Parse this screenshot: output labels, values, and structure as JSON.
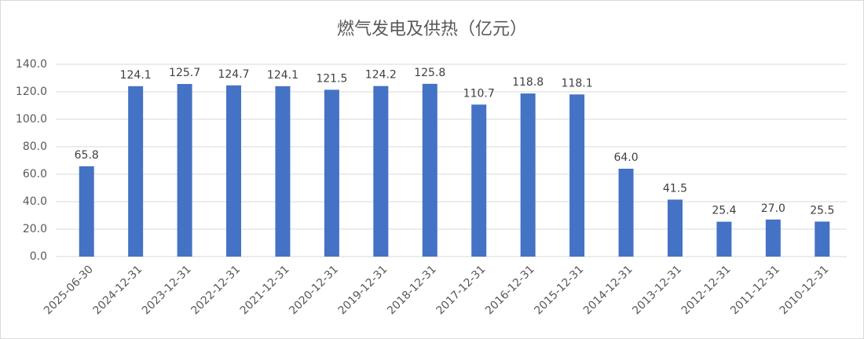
{
  "chart_data": {
    "type": "bar",
    "title": "燃气发电及供热（亿元）",
    "categories": [
      "2025-06-30",
      "2024-12-31",
      "2023-12-31",
      "2022-12-31",
      "2021-12-31",
      "2020-12-31",
      "2019-12-31",
      "2018-12-31",
      "2017-12-31",
      "2016-12-31",
      "2015-12-31",
      "2014-12-31",
      "2013-12-31",
      "2012-12-31",
      "2011-12-31",
      "2010-12-31"
    ],
    "values": [
      65.8,
      124.1,
      125.7,
      124.7,
      124.1,
      121.5,
      124.2,
      125.8,
      110.7,
      118.8,
      118.1,
      64.0,
      41.5,
      25.4,
      27.0,
      25.5
    ],
    "value_labels": [
      "65.8",
      "124.1",
      "125.7",
      "124.7",
      "124.1",
      "121.5",
      "124.2",
      "125.8",
      "110.7",
      "118.8",
      "118.1",
      "64.0",
      "41.5",
      "25.4",
      "27.0",
      "25.5"
    ],
    "color": "#4472c4",
    "ylim": [
      0,
      140
    ],
    "yticks": [
      {
        "value": 0,
        "label": "0.0"
      },
      {
        "value": 20,
        "label": "20.0"
      },
      {
        "value": 40,
        "label": "40.0"
      },
      {
        "value": 60,
        "label": "60.0"
      },
      {
        "value": 80,
        "label": "80.0"
      },
      {
        "value": 100,
        "label": "100.0"
      },
      {
        "value": 120,
        "label": "120.0"
      },
      {
        "value": 140,
        "label": "140.0"
      }
    ],
    "grid": true
  }
}
